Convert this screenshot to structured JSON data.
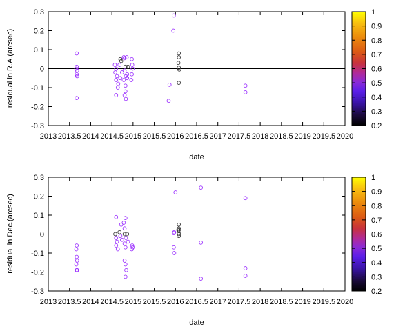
{
  "colors": {
    "palette": [
      "#000000",
      "#1a0a3a",
      "#3a14a8",
      "#5a1ee8",
      "#8a2ad8",
      "#b02a9a",
      "#c8323c",
      "#dc5a14",
      "#ec8c0c",
      "#f8c010",
      "#ffff00"
    ]
  },
  "chart_data": [
    {
      "type": "scatter",
      "xlabel": "date",
      "ylabel": "residual in R.A.(arcsec)",
      "xlim": [
        2013,
        2020
      ],
      "ylim": [
        -0.3,
        0.3
      ],
      "xticks": [
        2013,
        2013.5,
        2014,
        2014.5,
        2015,
        2015.5,
        2016,
        2016.5,
        2017,
        2017.5,
        2018,
        2018.5,
        2019,
        2019.5,
        2020
      ],
      "xtick_labels": [
        "2013",
        "2013.5",
        "2014",
        "2014.5",
        "2015",
        "2015.5",
        "2016",
        "2016.5",
        "2017",
        "2017.5",
        "2018",
        "2018.5",
        "2019",
        "2019.5",
        "2020"
      ],
      "yticks": [
        -0.3,
        -0.2,
        -0.1,
        0,
        0.1,
        0.2,
        0.3
      ],
      "ytick_labels": [
        "-0.3",
        "-0.2",
        "-0.1",
        "0",
        "0.1",
        "0.2",
        "0.3"
      ],
      "zero_line": true,
      "colorbar": {
        "range": [
          0.2,
          1
        ],
        "ticks": [
          "1",
          "0.9",
          "0.8",
          "0.7",
          "0.6",
          "0.5",
          "0.4",
          "0.3",
          "0.2"
        ]
      },
      "points": [
        {
          "x": 2013.67,
          "y": 0.08,
          "c": 0.45
        },
        {
          "x": 2013.67,
          "y": 0.01,
          "c": 0.45
        },
        {
          "x": 2013.66,
          "y": 0.0,
          "c": 0.45
        },
        {
          "x": 2013.68,
          "y": -0.01,
          "c": 0.45
        },
        {
          "x": 2013.67,
          "y": -0.03,
          "c": 0.45
        },
        {
          "x": 2013.68,
          "y": -0.04,
          "c": 0.45
        },
        {
          "x": 2013.67,
          "y": -0.155,
          "c": 0.45
        },
        {
          "x": 2014.57,
          "y": 0.02,
          "c": 0.45
        },
        {
          "x": 2014.6,
          "y": 0.0,
          "c": 0.45
        },
        {
          "x": 2014.58,
          "y": -0.02,
          "c": 0.45
        },
        {
          "x": 2014.62,
          "y": -0.04,
          "c": 0.45
        },
        {
          "x": 2014.6,
          "y": -0.06,
          "c": 0.45
        },
        {
          "x": 2014.65,
          "y": -0.08,
          "c": 0.45
        },
        {
          "x": 2014.64,
          "y": -0.1,
          "c": 0.45
        },
        {
          "x": 2014.6,
          "y": -0.14,
          "c": 0.45
        },
        {
          "x": 2014.7,
          "y": 0.05,
          "c": 0.3
        },
        {
          "x": 2014.72,
          "y": 0.04,
          "c": 0.3
        },
        {
          "x": 2014.68,
          "y": 0.02,
          "c": 0.45
        },
        {
          "x": 2014.74,
          "y": -0.02,
          "c": 0.45
        },
        {
          "x": 2014.7,
          "y": -0.05,
          "c": 0.45
        },
        {
          "x": 2014.78,
          "y": 0.06,
          "c": 0.45
        },
        {
          "x": 2014.8,
          "y": 0.055,
          "c": 0.45
        },
        {
          "x": 2014.82,
          "y": 0.01,
          "c": 0.3
        },
        {
          "x": 2014.8,
          "y": -0.01,
          "c": 0.45
        },
        {
          "x": 2014.83,
          "y": -0.04,
          "c": 0.45
        },
        {
          "x": 2014.78,
          "y": -0.06,
          "c": 0.45
        },
        {
          "x": 2014.82,
          "y": -0.09,
          "c": 0.45
        },
        {
          "x": 2014.82,
          "y": -0.12,
          "c": 0.45
        },
        {
          "x": 2014.8,
          "y": -0.14,
          "c": 0.45
        },
        {
          "x": 2014.83,
          "y": -0.16,
          "c": 0.45
        },
        {
          "x": 2014.85,
          "y": 0.06,
          "c": 0.45
        },
        {
          "x": 2014.88,
          "y": 0.01,
          "c": 0.3
        },
        {
          "x": 2014.86,
          "y": -0.03,
          "c": 0.45
        },
        {
          "x": 2014.86,
          "y": -0.05,
          "c": 0.45
        },
        {
          "x": 2014.97,
          "y": 0.05,
          "c": 0.45
        },
        {
          "x": 2014.98,
          "y": 0.02,
          "c": 0.45
        },
        {
          "x": 2014.99,
          "y": 0.0,
          "c": 0.45
        },
        {
          "x": 2014.97,
          "y": -0.03,
          "c": 0.45
        },
        {
          "x": 2014.96,
          "y": -0.06,
          "c": 0.45
        },
        {
          "x": 2015.86,
          "y": -0.085,
          "c": 0.45
        },
        {
          "x": 2015.84,
          "y": -0.17,
          "c": 0.45
        },
        {
          "x": 2015.96,
          "y": 0.28,
          "c": 0.45
        },
        {
          "x": 2015.95,
          "y": 0.2,
          "c": 0.45
        },
        {
          "x": 2016.08,
          "y": 0.08,
          "c": 0.3
        },
        {
          "x": 2016.08,
          "y": 0.06,
          "c": 0.3
        },
        {
          "x": 2016.07,
          "y": 0.03,
          "c": 0.3
        },
        {
          "x": 2016.08,
          "y": 0.005,
          "c": 0.3
        },
        {
          "x": 2016.09,
          "y": -0.005,
          "c": 0.3
        },
        {
          "x": 2016.08,
          "y": -0.075,
          "c": 0.3
        },
        {
          "x": 2017.65,
          "y": -0.09,
          "c": 0.45
        },
        {
          "x": 2017.65,
          "y": -0.125,
          "c": 0.45
        }
      ]
    },
    {
      "type": "scatter",
      "xlabel": "date",
      "ylabel": "residual in Dec.(arcsec)",
      "xlim": [
        2013,
        2020
      ],
      "ylim": [
        -0.3,
        0.3
      ],
      "xticks": [
        2013,
        2013.5,
        2014,
        2014.5,
        2015,
        2015.5,
        2016,
        2016.5,
        2017,
        2017.5,
        2018,
        2018.5,
        2019,
        2019.5,
        2020
      ],
      "xtick_labels": [
        "2013",
        "2013.5",
        "2014",
        "2014.5",
        "2015",
        "2015.5",
        "2016",
        "2016.5",
        "2017",
        "2017.5",
        "2018",
        "2018.5",
        "2019",
        "2019.5",
        "2020"
      ],
      "yticks": [
        -0.3,
        -0.2,
        -0.1,
        0,
        0.1,
        0.2,
        0.3
      ],
      "ytick_labels": [
        "-0.3",
        "-0.2",
        "-0.1",
        "0",
        "0.1",
        "0.2",
        "0.3"
      ],
      "zero_line": true,
      "colorbar": {
        "range": [
          0.2,
          1
        ],
        "ticks": [
          "1",
          "0.9",
          "0.8",
          "0.7",
          "0.6",
          "0.5",
          "0.4",
          "0.3",
          "0.2"
        ]
      },
      "points": [
        {
          "x": 2013.67,
          "y": -0.06,
          "c": 0.45
        },
        {
          "x": 2013.66,
          "y": -0.08,
          "c": 0.45
        },
        {
          "x": 2013.67,
          "y": -0.12,
          "c": 0.45
        },
        {
          "x": 2013.68,
          "y": -0.14,
          "c": 0.45
        },
        {
          "x": 2013.66,
          "y": -0.16,
          "c": 0.45
        },
        {
          "x": 2013.67,
          "y": -0.19,
          "c": 0.45
        },
        {
          "x": 2013.68,
          "y": -0.19,
          "c": 0.45
        },
        {
          "x": 2014.6,
          "y": 0.09,
          "c": 0.45
        },
        {
          "x": 2014.58,
          "y": 0.0,
          "c": 0.3
        },
        {
          "x": 2014.6,
          "y": -0.02,
          "c": 0.45
        },
        {
          "x": 2014.62,
          "y": -0.04,
          "c": 0.45
        },
        {
          "x": 2014.6,
          "y": -0.06,
          "c": 0.45
        },
        {
          "x": 2014.64,
          "y": -0.08,
          "c": 0.45
        },
        {
          "x": 2014.68,
          "y": 0.01,
          "c": 0.3
        },
        {
          "x": 2014.7,
          "y": -0.01,
          "c": 0.45
        },
        {
          "x": 2014.72,
          "y": 0.05,
          "c": 0.45
        },
        {
          "x": 2014.74,
          "y": -0.03,
          "c": 0.45
        },
        {
          "x": 2014.78,
          "y": 0.06,
          "c": 0.45
        },
        {
          "x": 2014.8,
          "y": 0.03,
          "c": 0.45
        },
        {
          "x": 2014.82,
          "y": 0.085,
          "c": 0.45
        },
        {
          "x": 2014.8,
          "y": 0.0,
          "c": 0.3
        },
        {
          "x": 2014.83,
          "y": -0.02,
          "c": 0.45
        },
        {
          "x": 2014.8,
          "y": -0.05,
          "c": 0.45
        },
        {
          "x": 2014.82,
          "y": -0.07,
          "c": 0.45
        },
        {
          "x": 2014.8,
          "y": -0.14,
          "c": 0.45
        },
        {
          "x": 2014.82,
          "y": -0.16,
          "c": 0.45
        },
        {
          "x": 2014.84,
          "y": -0.19,
          "c": 0.45
        },
        {
          "x": 2014.82,
          "y": -0.225,
          "c": 0.45
        },
        {
          "x": 2014.86,
          "y": -0.0,
          "c": 0.3
        },
        {
          "x": 2014.88,
          "y": -0.04,
          "c": 0.45
        },
        {
          "x": 2014.98,
          "y": -0.06,
          "c": 0.45
        },
        {
          "x": 2014.97,
          "y": -0.08,
          "c": 0.45
        },
        {
          "x": 2014.99,
          "y": -0.07,
          "c": 0.45
        },
        {
          "x": 2015.97,
          "y": 0.01,
          "c": 0.45
        },
        {
          "x": 2015.96,
          "y": 0.005,
          "c": 0.45
        },
        {
          "x": 2015.96,
          "y": -0.07,
          "c": 0.45
        },
        {
          "x": 2015.97,
          "y": -0.1,
          "c": 0.45
        },
        {
          "x": 2016.0,
          "y": 0.22,
          "c": 0.45
        },
        {
          "x": 2016.08,
          "y": 0.05,
          "c": 0.3
        },
        {
          "x": 2016.08,
          "y": 0.03,
          "c": 0.3
        },
        {
          "x": 2016.07,
          "y": 0.02,
          "c": 0.3
        },
        {
          "x": 2016.09,
          "y": 0.015,
          "c": 0.3
        },
        {
          "x": 2016.08,
          "y": 0.0,
          "c": 0.3
        },
        {
          "x": 2016.08,
          "y": -0.01,
          "c": 0.3
        },
        {
          "x": 2016.07,
          "y": 0.025,
          "c": 0.3
        },
        {
          "x": 2016.6,
          "y": 0.245,
          "c": 0.45
        },
        {
          "x": 2016.6,
          "y": -0.045,
          "c": 0.45
        },
        {
          "x": 2016.6,
          "y": -0.235,
          "c": 0.45
        },
        {
          "x": 2017.65,
          "y": 0.19,
          "c": 0.45
        },
        {
          "x": 2017.65,
          "y": -0.18,
          "c": 0.45
        },
        {
          "x": 2017.65,
          "y": -0.22,
          "c": 0.45
        }
      ]
    }
  ]
}
